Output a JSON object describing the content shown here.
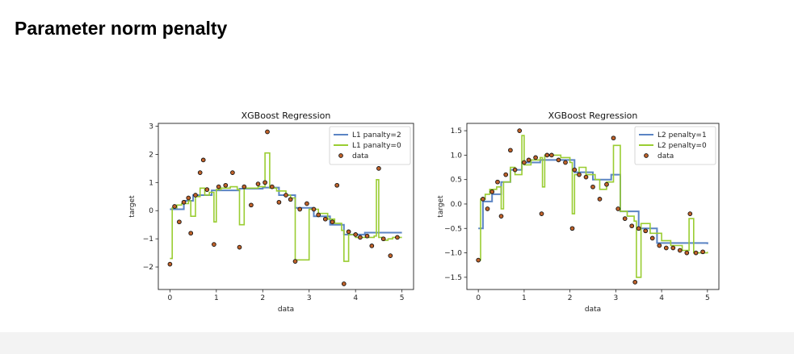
{
  "slide": {
    "title": "Parameter norm penalty"
  },
  "colors": {
    "blue": "#5b84c4",
    "green": "#9acd32",
    "dot_fill": "#c0622a",
    "dot_edge": "#111111"
  },
  "chart_data": [
    {
      "type": "line",
      "title": "XGBoost Regression",
      "xlabel": "data",
      "ylabel": "target",
      "xlim": [
        -0.25,
        5.25
      ],
      "ylim": [
        -2.8,
        3.1
      ],
      "xticks": [
        0,
        1,
        2,
        3,
        4,
        5
      ],
      "yticks": [
        -2,
        -1,
        0,
        1,
        2,
        3
      ],
      "legend_loc": "upper right",
      "series": [
        {
          "name": "L1 panalty=2",
          "kind": "step",
          "color": "#5b84c4",
          "x": [
            0,
            0.3,
            0.5,
            0.9,
            1.5,
            2.0,
            2.35,
            2.7,
            3.1,
            3.45,
            3.75,
            4.2,
            5.0
          ],
          "y": [
            0.05,
            0.35,
            0.55,
            0.72,
            0.78,
            0.82,
            0.55,
            0.1,
            -0.2,
            -0.5,
            -0.85,
            -0.78,
            -0.78
          ]
        },
        {
          "name": "L1 panalty=0",
          "kind": "step",
          "color": "#9acd32",
          "x": [
            0,
            0.05,
            0.15,
            0.25,
            0.4,
            0.45,
            0.55,
            0.65,
            0.75,
            0.85,
            0.95,
            1.0,
            1.1,
            1.3,
            1.45,
            1.5,
            1.6,
            1.9,
            2.05,
            2.15,
            2.3,
            2.5,
            2.6,
            2.7,
            3.0,
            3.2,
            3.4,
            3.55,
            3.7,
            3.75,
            3.85,
            4.0,
            4.4,
            4.45,
            4.5,
            4.6,
            4.7,
            4.8,
            5.0
          ],
          "y": [
            -1.7,
            0.1,
            0.2,
            0.25,
            0.35,
            -0.2,
            0.5,
            0.8,
            0.55,
            0.65,
            -0.4,
            0.75,
            0.8,
            0.85,
            0.75,
            -0.5,
            0.8,
            0.85,
            2.05,
            0.8,
            0.7,
            0.55,
            0.45,
            -1.75,
            0.05,
            -0.1,
            -0.3,
            -0.45,
            -0.7,
            -1.8,
            -0.85,
            -0.95,
            -0.9,
            1.1,
            -0.95,
            -1.05,
            -1.0,
            -0.95,
            -0.95
          ]
        }
      ],
      "scatter": {
        "name": "data",
        "x": [
          0.0,
          0.1,
          0.2,
          0.3,
          0.4,
          0.45,
          0.55,
          0.65,
          0.72,
          0.8,
          0.95,
          1.05,
          1.2,
          1.35,
          1.5,
          1.6,
          1.75,
          1.9,
          2.05,
          2.1,
          2.2,
          2.35,
          2.5,
          2.6,
          2.7,
          2.8,
          2.95,
          3.1,
          3.2,
          3.35,
          3.5,
          3.6,
          3.75,
          3.85,
          4.0,
          4.1,
          4.25,
          4.35,
          4.5,
          4.6,
          4.75,
          4.9
        ],
        "y": [
          -1.9,
          0.15,
          -0.4,
          0.3,
          0.45,
          -0.8,
          0.55,
          1.35,
          1.8,
          0.75,
          -1.2,
          0.85,
          0.9,
          1.35,
          -1.3,
          0.85,
          0.2,
          0.95,
          1.0,
          2.8,
          0.85,
          0.3,
          0.55,
          0.4,
          -1.8,
          0.05,
          0.25,
          0.05,
          -0.15,
          -0.3,
          -0.4,
          0.9,
          -2.6,
          -0.75,
          -0.85,
          -0.95,
          -0.9,
          -1.25,
          1.5,
          -1.0,
          -1.6,
          -0.95
        ]
      }
    },
    {
      "type": "line",
      "title": "XGBoost Regression",
      "xlabel": "data",
      "ylabel": "target",
      "xlim": [
        -0.25,
        5.25
      ],
      "ylim": [
        -1.75,
        1.65
      ],
      "xticks": [
        0,
        1,
        2,
        3,
        4,
        5
      ],
      "yticks": [
        -1.5,
        -1.0,
        -0.5,
        0.0,
        0.5,
        1.0,
        1.5
      ],
      "legend_loc": "upper right",
      "series": [
        {
          "name": "L2 penalty=1",
          "kind": "step",
          "color": "#5b84c4",
          "x": [
            0,
            0.1,
            0.3,
            0.5,
            0.7,
            0.95,
            1.35,
            2.1,
            2.5,
            2.9,
            3.1,
            3.5,
            3.9,
            5.0
          ],
          "y": [
            -0.5,
            0.05,
            0.2,
            0.45,
            0.7,
            0.85,
            0.9,
            0.65,
            0.5,
            0.6,
            -0.15,
            -0.5,
            -0.8,
            -0.82
          ]
        },
        {
          "name": "L2 penalty=0",
          "kind": "step",
          "color": "#9acd32",
          "x": [
            0,
            0.05,
            0.15,
            0.25,
            0.4,
            0.5,
            0.55,
            0.7,
            0.8,
            0.95,
            1.0,
            1.15,
            1.35,
            1.4,
            1.45,
            1.6,
            1.8,
            2.0,
            2.05,
            2.1,
            2.2,
            2.35,
            2.55,
            2.65,
            2.8,
            2.95,
            3.1,
            3.25,
            3.4,
            3.45,
            3.55,
            3.75,
            4.0,
            4.2,
            4.45,
            4.6,
            4.7,
            4.8,
            5.0
          ],
          "y": [
            -1.15,
            0.1,
            0.2,
            0.3,
            0.35,
            -0.1,
            0.45,
            0.75,
            0.6,
            1.4,
            0.8,
            0.9,
            0.95,
            0.35,
            1.0,
            1.0,
            0.95,
            0.85,
            -0.2,
            0.6,
            0.75,
            0.6,
            0.5,
            0.3,
            0.45,
            1.2,
            -0.15,
            -0.25,
            -0.35,
            -1.5,
            -0.4,
            -0.6,
            -0.75,
            -0.85,
            -0.95,
            -0.3,
            -1.0,
            -1.0,
            -0.98
          ]
        }
      ],
      "scatter": {
        "name": "data",
        "x": [
          0.0,
          0.1,
          0.2,
          0.3,
          0.42,
          0.5,
          0.6,
          0.7,
          0.8,
          0.9,
          1.0,
          1.1,
          1.25,
          1.38,
          1.5,
          1.6,
          1.75,
          1.9,
          2.05,
          2.1,
          2.2,
          2.35,
          2.5,
          2.65,
          2.8,
          2.95,
          3.05,
          3.2,
          3.35,
          3.42,
          3.5,
          3.65,
          3.8,
          3.95,
          4.1,
          4.25,
          4.4,
          4.55,
          4.62,
          4.75,
          4.9
        ],
        "y": [
          -1.15,
          0.1,
          -0.1,
          0.25,
          0.45,
          -0.25,
          0.6,
          1.1,
          0.7,
          1.5,
          0.85,
          0.9,
          0.95,
          -0.2,
          1.0,
          1.0,
          0.9,
          0.85,
          -0.5,
          0.7,
          0.6,
          0.55,
          0.35,
          0.1,
          0.4,
          1.35,
          -0.1,
          -0.3,
          -0.45,
          -1.6,
          -0.5,
          -0.55,
          -0.7,
          -0.85,
          -0.9,
          -0.9,
          -0.95,
          -1.0,
          -0.2,
          -1.0,
          -0.98
        ]
      }
    }
  ]
}
